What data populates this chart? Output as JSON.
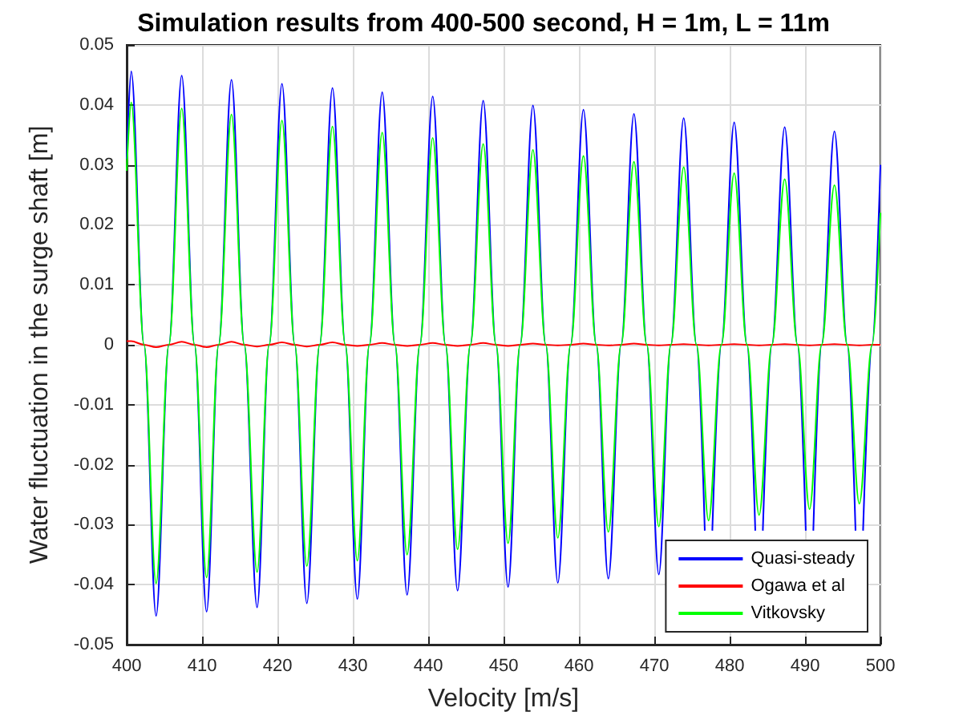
{
  "chart_data": {
    "type": "line",
    "title": "Simulation results from 400-500 second, H = 1m, L = 11m",
    "xlabel": "Velocity [m/s]",
    "ylabel": "Water fluctuation in the surge shaft [m]",
    "x": [
      400,
      400.6,
      402.3,
      403.9,
      405.6,
      407.3,
      409.0,
      410.6,
      412.2,
      413.9,
      415.6,
      417.3,
      418.9,
      420.6,
      422.3,
      423.9,
      425.6,
      427.3,
      429.0,
      430.6,
      432.2,
      433.9,
      435.6,
      437.2,
      438.9,
      440.6,
      442.3,
      443.9,
      445.6,
      447.3,
      449.0,
      450.6,
      452.2,
      453.9,
      455.6,
      457.2,
      458.9,
      460.6,
      462.3,
      463.9,
      465.6,
      467.3,
      469.0,
      470.6,
      472.2,
      473.9,
      475.6,
      477.2,
      478.9,
      480.6,
      482.3,
      483.9,
      485.6,
      487.3,
      489.0,
      490.6,
      492.2,
      493.9,
      495.6,
      497.2,
      498.9,
      500
    ],
    "series": [
      {
        "name": "Quasi-steady",
        "color": "#0000ff",
        "x": [
          400,
          400.6,
          402.3,
          403.9,
          405.6,
          407.3,
          409.0,
          410.6,
          412.2,
          413.9,
          415.6,
          417.3,
          418.9,
          420.6,
          422.3,
          423.9,
          425.6,
          427.3,
          429.0,
          430.6,
          432.2,
          433.9,
          435.6,
          437.2,
          438.9,
          440.6,
          442.3,
          443.9,
          445.6,
          447.3,
          449.0,
          450.6,
          452.2,
          453.9,
          455.6,
          457.2,
          458.9,
          460.6,
          462.3,
          463.9,
          465.6,
          467.3,
          469.0,
          470.6,
          472.2,
          473.9,
          475.6,
          476.7,
          477.2,
          477.7,
          478.9,
          480.6,
          482.3,
          483.4,
          483.9,
          484.4,
          485.6,
          487.3,
          489.0,
          490.1,
          490.6,
          491.1,
          492.2,
          493.9,
          495.6,
          496.7,
          497.2,
          497.7,
          498.9,
          500
        ],
        "values": [
          0.031,
          0.0456,
          0,
          -0.0452,
          0,
          0.0449,
          0,
          -0.0445,
          0,
          0.0442,
          0,
          -0.0438,
          0,
          0.0435,
          0,
          -0.0431,
          0,
          0.0428,
          0,
          -0.0424,
          0,
          0.0421,
          0,
          -0.0417,
          0,
          0.0414,
          0,
          -0.041,
          0,
          0.0407,
          0,
          -0.0404,
          0,
          0.0399,
          0,
          -0.0397,
          0,
          0.0392,
          0,
          -0.039,
          0,
          0.0385,
          0,
          -0.0383,
          0,
          0.0378,
          0,
          -0.031,
          null,
          -0.031,
          0,
          0.0371,
          0,
          -0.031,
          null,
          -0.031,
          0,
          0.0363,
          0,
          -0.031,
          null,
          -0.031,
          0,
          0.0356,
          0,
          -0.031,
          null,
          -0.031,
          0,
          0.03
        ]
      },
      {
        "name": "Ogawa et al",
        "color": "#ff0000",
        "values": [
          0.0006,
          0.0006,
          0,
          -0.0004,
          0,
          0.0005,
          0,
          -0.0004,
          0,
          0.0005,
          0,
          -0.0003,
          0,
          0.0004,
          0,
          -0.0003,
          0,
          0.0004,
          0,
          -0.0002,
          0,
          0.0003,
          0,
          -0.0002,
          0,
          0.0003,
          0,
          -0.0002,
          0,
          0.0003,
          0,
          -0.0002,
          0,
          0.0002,
          0,
          -0.0001,
          0,
          0.0002,
          0,
          -0.0001,
          0,
          0.0002,
          0,
          -0.0001,
          0,
          0.0001,
          0,
          -0.0001,
          0,
          0.0001,
          0,
          -0.0001,
          0,
          0.0001,
          0,
          -0.0001,
          0,
          0.0001,
          0,
          -0.0001,
          0,
          0
        ]
      },
      {
        "name": "Vitkovsky",
        "color": "#00ff00",
        "values": [
          0.029,
          0.0404,
          0,
          -0.0398,
          0,
          0.0394,
          0,
          -0.0388,
          0,
          0.0384,
          0,
          -0.0379,
          0,
          0.0374,
          0,
          -0.0369,
          0,
          0.0364,
          0,
          -0.036,
          0,
          0.0354,
          0,
          -0.035,
          0,
          0.0345,
          0,
          -0.0341,
          0,
          0.0335,
          0,
          -0.0331,
          0,
          0.0325,
          0,
          -0.0322,
          0,
          0.0315,
          0,
          -0.0312,
          0,
          0.0305,
          0,
          -0.0303,
          0,
          0.0296,
          0,
          -0.0293,
          0,
          0.0286,
          0,
          -0.0284,
          0,
          0.0276,
          0,
          -0.0274,
          0,
          0.0266,
          0,
          -0.0265,
          0,
          0.022
        ]
      }
    ],
    "xlim": [
      400,
      500
    ],
    "xticks": [
      400,
      410,
      420,
      430,
      440,
      450,
      460,
      470,
      480,
      490,
      500
    ],
    "ylim": [
      -0.05,
      0.05
    ],
    "yticks": [
      -0.05,
      -0.04,
      -0.03,
      -0.02,
      -0.01,
      0,
      0.01,
      0.02,
      0.03,
      0.04,
      0.05
    ],
    "grid": true,
    "legend": "bottom right",
    "marker": "none",
    "line_style": "solid"
  }
}
